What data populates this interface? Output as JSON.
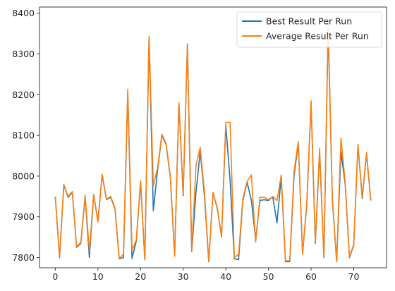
{
  "chart_data": {
    "type": "line",
    "title": "",
    "xlabel": "",
    "ylabel": "",
    "xlim": [
      -3.7,
      77.7
    ],
    "ylim": [
      7775,
      8415
    ],
    "x_ticks": [
      0,
      10,
      20,
      30,
      40,
      50,
      60,
      70
    ],
    "y_ticks": [
      7800,
      7900,
      8000,
      8100,
      8200,
      8300,
      8400
    ],
    "legend_position": "upper right",
    "grid": false,
    "series": [
      {
        "name": "Best Result Per Run",
        "color": "#1f77b4",
        "values": [
          7950,
          7800,
          7978,
          7948,
          7960,
          7825,
          7835,
          7950,
          7800,
          7955,
          7890,
          8003,
          7942,
          7948,
          7920,
          7797,
          7800,
          8205,
          7798,
          7840,
          7985,
          7795,
          8340,
          7915,
          8015,
          8100,
          8078,
          7995,
          7805,
          8178,
          7952,
          8322,
          7815,
          7960,
          8060,
          7950,
          7790,
          7960,
          7920,
          7852,
          8125,
          7990,
          7797,
          7795,
          7940,
          7985,
          7940,
          7845,
          7940,
          7942,
          7940,
          7950,
          7885,
          7998,
          7790,
          7790,
          8000,
          8080,
          7810,
          7930,
          8180,
          7835,
          8060,
          7800,
          8360,
          7940,
          7790,
          8060,
          7980,
          7800,
          7830,
          8075,
          7945,
          8055,
          7940
        ]
      },
      {
        "name": "Average Result Per Run",
        "color": "#ff7f0e",
        "values": [
          7950,
          7802,
          7980,
          7950,
          7962,
          7827,
          7837,
          7953,
          7815,
          7955,
          7887,
          8005,
          7943,
          7950,
          7922,
          7798,
          7808,
          8213,
          7818,
          7843,
          7988,
          7795,
          8343,
          7975,
          8020,
          8103,
          8080,
          7998,
          7803,
          8180,
          7955,
          8325,
          7818,
          8025,
          8070,
          7960,
          7792,
          7960,
          7922,
          7850,
          8132,
          8132,
          7800,
          7808,
          7945,
          7987,
          8003,
          7838,
          7948,
          7948,
          7942,
          7950,
          7940,
          8003,
          7792,
          7792,
          8010,
          8085,
          7808,
          7935,
          8185,
          7838,
          8068,
          7800,
          8375,
          7940,
          7790,
          8093,
          7985,
          7802,
          7832,
          8078,
          7948,
          8058,
          7942
        ]
      }
    ]
  }
}
